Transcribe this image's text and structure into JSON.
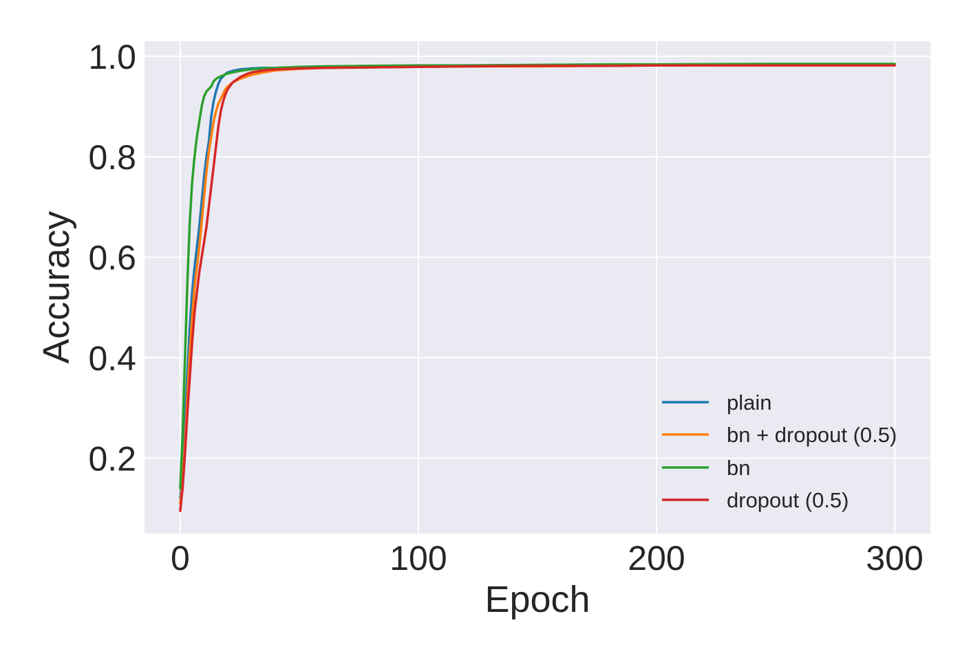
{
  "chart_data": {
    "type": "line",
    "title": "",
    "xlabel": "Epoch",
    "ylabel": "Accuracy",
    "xlim": [
      -15,
      315
    ],
    "ylim": [
      0.05,
      1.03
    ],
    "xticks": [
      0,
      100,
      200,
      300
    ],
    "xtick_labels": [
      "0",
      "100",
      "200",
      "300"
    ],
    "yticks": [
      0.2,
      0.4,
      0.6,
      0.8,
      1.0
    ],
    "ytick_labels": [
      "0.2",
      "0.4",
      "0.6",
      "0.8",
      "1.0"
    ],
    "grid": true,
    "legend_position": "lower-right",
    "series": [
      {
        "name": "plain",
        "color": "#1f77b4",
        "x": [
          0,
          1,
          2,
          3,
          4,
          5,
          6,
          7,
          8,
          9,
          10,
          11,
          12,
          13,
          14,
          15,
          16,
          17,
          18,
          19,
          20,
          22,
          25,
          28,
          30,
          35,
          40,
          50,
          60,
          80,
          100,
          120,
          150,
          180,
          200,
          250,
          300
        ],
        "y": [
          0.12,
          0.17,
          0.27,
          0.37,
          0.46,
          0.53,
          0.58,
          0.62,
          0.66,
          0.71,
          0.76,
          0.8,
          0.83,
          0.88,
          0.91,
          0.93,
          0.945,
          0.955,
          0.96,
          0.965,
          0.968,
          0.971,
          0.974,
          0.975,
          0.976,
          0.977,
          0.977,
          0.978,
          0.979,
          0.98,
          0.98,
          0.98,
          0.981,
          0.982,
          0.982,
          0.983,
          0.983
        ]
      },
      {
        "name": "bn + dropout (0.5)",
        "color": "#ff7f0e",
        "x": [
          0,
          1,
          2,
          3,
          4,
          5,
          6,
          7,
          8,
          9,
          10,
          11,
          12,
          13,
          14,
          15,
          16,
          17,
          18,
          19,
          20,
          22,
          25,
          28,
          30,
          35,
          40,
          50,
          60,
          80,
          100,
          120,
          150,
          180,
          200,
          250,
          300
        ],
        "y": [
          0.11,
          0.15,
          0.23,
          0.32,
          0.41,
          0.48,
          0.54,
          0.58,
          0.62,
          0.67,
          0.72,
          0.77,
          0.81,
          0.84,
          0.87,
          0.89,
          0.905,
          0.915,
          0.925,
          0.935,
          0.94,
          0.948,
          0.955,
          0.96,
          0.963,
          0.968,
          0.972,
          0.975,
          0.977,
          0.978,
          0.979,
          0.98,
          0.98,
          0.981,
          0.982,
          0.983,
          0.983
        ]
      },
      {
        "name": "bn",
        "color": "#2ca02c",
        "x": [
          0,
          1,
          2,
          3,
          4,
          5,
          6,
          7,
          8,
          9,
          10,
          11,
          12,
          13,
          14,
          15,
          16,
          17,
          18,
          19,
          20,
          22,
          25,
          28,
          30,
          35,
          40,
          50,
          60,
          80,
          100,
          120,
          150,
          180,
          200,
          250,
          300
        ],
        "y": [
          0.14,
          0.25,
          0.4,
          0.55,
          0.67,
          0.75,
          0.8,
          0.84,
          0.87,
          0.9,
          0.92,
          0.93,
          0.935,
          0.94,
          0.95,
          0.955,
          0.958,
          0.96,
          0.962,
          0.964,
          0.966,
          0.968,
          0.971,
          0.973,
          0.974,
          0.976,
          0.977,
          0.979,
          0.98,
          0.981,
          0.982,
          0.982,
          0.983,
          0.984,
          0.984,
          0.985,
          0.985
        ]
      },
      {
        "name": "dropout (0.5)",
        "color": "#d62728",
        "x": [
          0,
          1,
          2,
          3,
          4,
          5,
          6,
          7,
          8,
          9,
          10,
          11,
          12,
          13,
          14,
          15,
          16,
          17,
          18,
          19,
          20,
          22,
          25,
          28,
          30,
          35,
          40,
          50,
          60,
          80,
          100,
          120,
          150,
          180,
          200,
          250,
          300
        ],
        "y": [
          0.095,
          0.14,
          0.21,
          0.29,
          0.36,
          0.43,
          0.49,
          0.53,
          0.57,
          0.6,
          0.63,
          0.66,
          0.7,
          0.74,
          0.78,
          0.82,
          0.86,
          0.89,
          0.91,
          0.925,
          0.935,
          0.948,
          0.958,
          0.965,
          0.968,
          0.972,
          0.974,
          0.976,
          0.977,
          0.978,
          0.979,
          0.98,
          0.981,
          0.981,
          0.982,
          0.982,
          0.982
        ]
      }
    ]
  }
}
